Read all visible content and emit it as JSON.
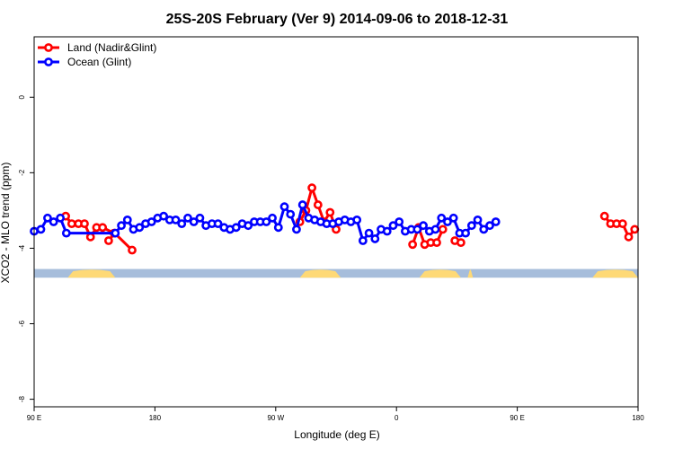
{
  "chart_data": {
    "type": "line",
    "title": "25S-20S February (Ver 9)   2014-09-06 to 2018-12-31",
    "xlabel": "Longitude (deg E)",
    "ylabel": "XCO2 - MLO trend (ppm)",
    "x_ticks": [
      {
        "value": 90,
        "label": "90 E"
      },
      {
        "value": 180,
        "label": "180"
      },
      {
        "value": 270,
        "label": "90 W"
      },
      {
        "value": 360,
        "label": "0"
      },
      {
        "value": 450,
        "label": "90 E"
      },
      {
        "value": 540,
        "label": "180"
      }
    ],
    "y_ticks": [
      0,
      -2,
      -4,
      -6,
      -8
    ],
    "xlim": [
      90,
      540
    ],
    "ylim": [
      -8.2,
      1.6
    ],
    "grid": false,
    "legend_position": "top-left",
    "series": [
      {
        "name": "Land (Nadir&Glint)",
        "color": "#ff0000",
        "segments": [
          [
            [
              113.5,
              -3.15
            ],
            [
              118.0,
              -3.35
            ],
            [
              123.0,
              -3.35
            ],
            [
              127.5,
              -3.35
            ],
            [
              132.0,
              -3.7
            ],
            [
              136.5,
              -3.45
            ],
            [
              141.0,
              -3.45
            ],
            [
              149.5,
              -3.6
            ]
          ],
          [
            [
              145.5,
              -3.8
            ],
            [
              150.0,
              -3.6
            ],
            [
              163.0,
              -4.05
            ]
          ],
          [
            [
              288.0,
              -3.3
            ],
            [
              292.5,
              -3.0
            ],
            [
              297.0,
              -2.4
            ],
            [
              301.5,
              -2.85
            ],
            [
              306.0,
              -3.3
            ],
            [
              310.5,
              -3.05
            ],
            [
              315.0,
              -3.5
            ]
          ],
          [
            [
              372.0,
              -3.9
            ],
            [
              376.5,
              -3.45
            ],
            [
              381.0,
              -3.9
            ],
            [
              385.5,
              -3.85
            ],
            [
              390.0,
              -3.85
            ],
            [
              394.5,
              -3.5
            ]
          ],
          [
            [
              403.5,
              -3.8
            ],
            [
              408.0,
              -3.85
            ]
          ],
          [
            [
              515.0,
              -3.15
            ],
            [
              519.5,
              -3.35
            ],
            [
              524.0,
              -3.35
            ],
            [
              528.5,
              -3.35
            ],
            [
              533.0,
              -3.7
            ],
            [
              537.5,
              -3.5
            ],
            [
              542.0,
              -3.45
            ],
            [
              546.5,
              -3.75
            ]
          ],
          [
            [
              564.0,
              -4.05
            ]
          ]
        ]
      },
      {
        "name": "Ocean (Glint)",
        "color": "#0000ff",
        "segments": [
          [
            [
              90.0,
              -3.55
            ],
            [
              95.0,
              -3.5
            ],
            [
              100.0,
              -3.2
            ],
            [
              104.5,
              -3.3
            ],
            [
              109.5,
              -3.2
            ],
            [
              114.0,
              -3.6
            ],
            [
              150.5,
              -3.6
            ],
            [
              155.0,
              -3.4
            ],
            [
              159.5,
              -3.25
            ],
            [
              164.0,
              -3.5
            ],
            [
              168.5,
              -3.45
            ],
            [
              173.0,
              -3.35
            ],
            [
              177.5,
              -3.3
            ],
            [
              182.0,
              -3.2
            ],
            [
              186.5,
              -3.15
            ],
            [
              191.0,
              -3.25
            ],
            [
              195.5,
              -3.25
            ],
            [
              200.0,
              -3.35
            ],
            [
              204.5,
              -3.2
            ],
            [
              209.0,
              -3.3
            ],
            [
              213.5,
              -3.2
            ],
            [
              218.0,
              -3.4
            ],
            [
              222.5,
              -3.35
            ],
            [
              227.0,
              -3.35
            ],
            [
              231.5,
              -3.45
            ],
            [
              236.0,
              -3.5
            ],
            [
              240.5,
              -3.45
            ],
            [
              245.0,
              -3.35
            ],
            [
              249.5,
              -3.4
            ],
            [
              254.0,
              -3.3
            ],
            [
              258.5,
              -3.3
            ],
            [
              263.0,
              -3.3
            ],
            [
              267.5,
              -3.2
            ],
            [
              272.0,
              -3.45
            ],
            [
              276.5,
              -2.9
            ],
            [
              281.0,
              -3.1
            ],
            [
              285.5,
              -3.5
            ],
            [
              290.0,
              -2.85
            ],
            [
              294.5,
              -3.2
            ],
            [
              299.0,
              -3.25
            ],
            [
              303.5,
              -3.3
            ],
            [
              308.0,
              -3.35
            ],
            [
              312.5,
              -3.35
            ],
            [
              317.0,
              -3.3
            ],
            [
              321.5,
              -3.25
            ],
            [
              326.0,
              -3.3
            ],
            [
              330.5,
              -3.25
            ],
            [
              335.0,
              -3.8
            ],
            [
              339.5,
              -3.6
            ],
            [
              344.0,
              -3.75
            ],
            [
              348.5,
              -3.5
            ],
            [
              353.0,
              -3.55
            ],
            [
              357.5,
              -3.4
            ],
            [
              362.0,
              -3.3
            ],
            [
              366.5,
              -3.55
            ],
            [
              371.0,
              -3.5
            ],
            [
              375.5,
              -3.5
            ],
            [
              380.0,
              -3.4
            ],
            [
              384.5,
              -3.55
            ],
            [
              389.0,
              -3.5
            ],
            [
              393.5,
              -3.2
            ],
            [
              398.0,
              -3.3
            ],
            [
              402.5,
              -3.2
            ],
            [
              407.0,
              -3.6
            ],
            [
              411.5,
              -3.6
            ],
            [
              416.0,
              -3.4
            ],
            [
              420.5,
              -3.25
            ],
            [
              425.0,
              -3.5
            ],
            [
              429.5,
              -3.4
            ],
            [
              434.0,
              -3.3
            ]
          ]
        ]
      }
    ],
    "map_strip": {
      "y_top": -4.55,
      "y_bottom": -4.78,
      "ocean_color": "#a6bddb",
      "land_color": "#fed976",
      "land_spans": [
        [
          115.0,
          150.5
        ],
        [
          288.0,
          318.5
        ],
        [
          377.0,
          408.0
        ],
        [
          413.0,
          417.0
        ],
        [
          506.0,
          552.5
        ]
      ]
    }
  }
}
